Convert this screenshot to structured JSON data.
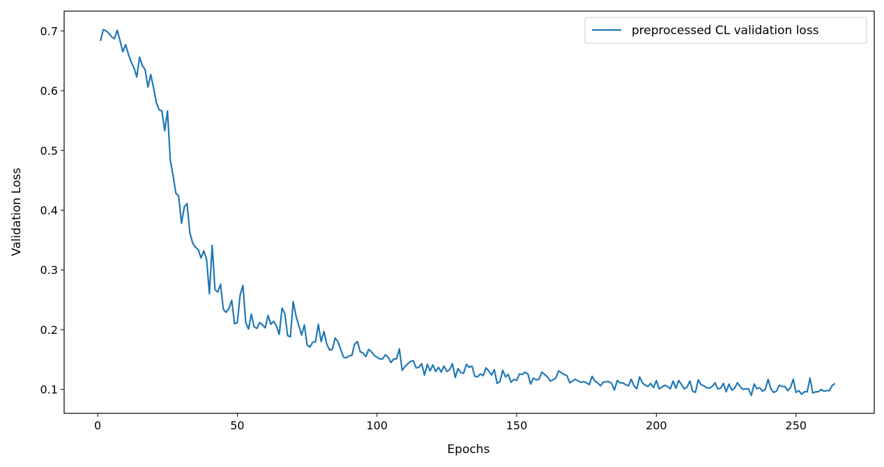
{
  "chart_data": {
    "type": "line",
    "title": "",
    "xlabel": "Epochs",
    "ylabel": "Validation Loss",
    "xlim": [
      -12,
      278
    ],
    "ylim": [
      0.06,
      0.733
    ],
    "x_ticks": [
      0,
      50,
      100,
      150,
      200,
      250
    ],
    "y_ticks": [
      0.1,
      0.2,
      0.3,
      0.4,
      0.5,
      0.6,
      0.7
    ],
    "grid": false,
    "legend_position": "top-right",
    "color": "#1f77b4",
    "series": [
      {
        "name": "preprocessed CL validation loss",
        "x_start": 1,
        "x_step": 1,
        "values": [
          0.683,
          0.702,
          0.7,
          0.696,
          0.69,
          0.687,
          0.701,
          0.684,
          0.665,
          0.677,
          0.661,
          0.648,
          0.638,
          0.623,
          0.656,
          0.642,
          0.635,
          0.606,
          0.627,
          0.605,
          0.58,
          0.568,
          0.566,
          0.533,
          0.566,
          0.484,
          0.458,
          0.428,
          0.424,
          0.378,
          0.405,
          0.411,
          0.362,
          0.345,
          0.338,
          0.334,
          0.32,
          0.332,
          0.318,
          0.26,
          0.341,
          0.267,
          0.263,
          0.276,
          0.234,
          0.229,
          0.236,
          0.249,
          0.21,
          0.212,
          0.258,
          0.274,
          0.212,
          0.201,
          0.226,
          0.205,
          0.202,
          0.212,
          0.208,
          0.203,
          0.224,
          0.209,
          0.214,
          0.206,
          0.192,
          0.236,
          0.227,
          0.19,
          0.188,
          0.247,
          0.223,
          0.207,
          0.191,
          0.208,
          0.174,
          0.171,
          0.179,
          0.18,
          0.209,
          0.18,
          0.197,
          0.176,
          0.166,
          0.167,
          0.186,
          0.18,
          0.167,
          0.154,
          0.153,
          0.156,
          0.157,
          0.176,
          0.18,
          0.163,
          0.161,
          0.155,
          0.167,
          0.163,
          0.157,
          0.154,
          0.151,
          0.151,
          0.158,
          0.154,
          0.145,
          0.151,
          0.151,
          0.168,
          0.132,
          0.138,
          0.143,
          0.147,
          0.148,
          0.136,
          0.137,
          0.143,
          0.124,
          0.142,
          0.131,
          0.141,
          0.13,
          0.137,
          0.129,
          0.139,
          0.13,
          0.133,
          0.143,
          0.12,
          0.135,
          0.128,
          0.127,
          0.142,
          0.137,
          0.139,
          0.122,
          0.121,
          0.126,
          0.123,
          0.136,
          0.131,
          0.124,
          0.133,
          0.11,
          0.113,
          0.132,
          0.121,
          0.125,
          0.112,
          0.117,
          0.115,
          0.126,
          0.125,
          0.129,
          0.126,
          0.109,
          0.119,
          0.116,
          0.117,
          0.129,
          0.125,
          0.121,
          0.114,
          0.116,
          0.119,
          0.131,
          0.128,
          0.125,
          0.123,
          0.111,
          0.114,
          0.117,
          0.114,
          0.112,
          0.113,
          0.111,
          0.108,
          0.122,
          0.114,
          0.111,
          0.106,
          0.112,
          0.113,
          0.113,
          0.11,
          0.099,
          0.115,
          0.111,
          0.111,
          0.108,
          0.106,
          0.117,
          0.106,
          0.101,
          0.121,
          0.111,
          0.107,
          0.105,
          0.11,
          0.103,
          0.115,
          0.101,
          0.104,
          0.107,
          0.105,
          0.101,
          0.114,
          0.102,
          0.115,
          0.108,
          0.101,
          0.104,
          0.114,
          0.097,
          0.095,
          0.116,
          0.108,
          0.106,
          0.103,
          0.102,
          0.105,
          0.111,
          0.101,
          0.102,
          0.11,
          0.096,
          0.109,
          0.099,
          0.102,
          0.111,
          0.105,
          0.1,
          0.101,
          0.101,
          0.09,
          0.109,
          0.101,
          0.103,
          0.097,
          0.1,
          0.117,
          0.101,
          0.095,
          0.097,
          0.107,
          0.105,
          0.105,
          0.098,
          0.103,
          0.117,
          0.095,
          0.098,
          0.092,
          0.096,
          0.096,
          0.119,
          0.094,
          0.096,
          0.096,
          0.1,
          0.097,
          0.098,
          0.098,
          0.107,
          0.11
        ]
      }
    ]
  }
}
